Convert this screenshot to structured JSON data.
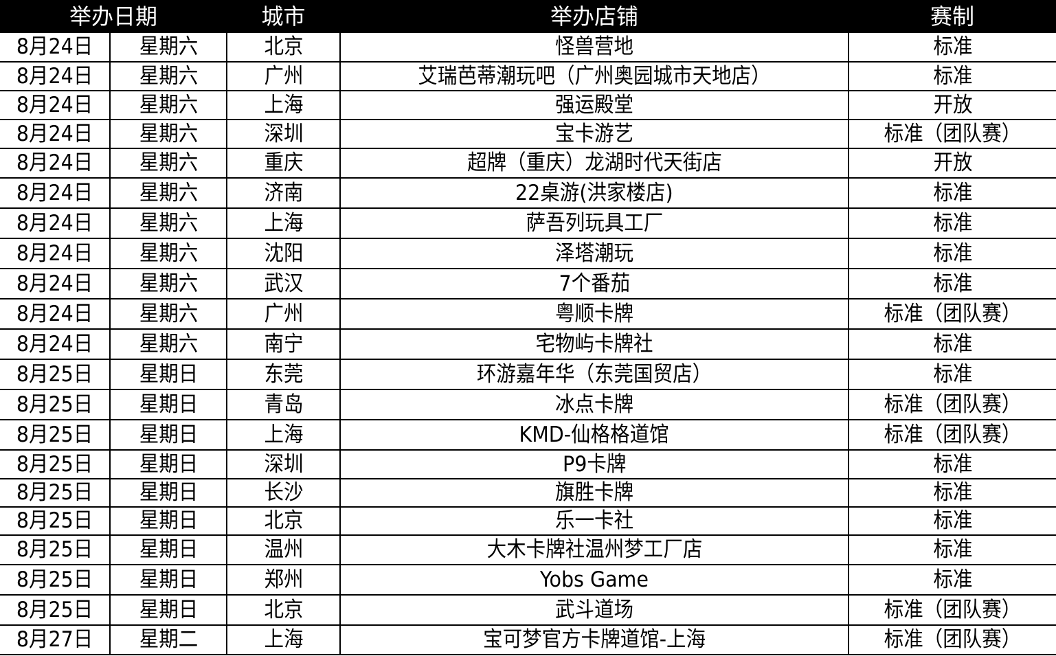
{
  "header": {
    "date": "举办日期",
    "city": "城市",
    "store": "举办店铺",
    "format": "赛制"
  },
  "rows": [
    [
      "8月24日",
      "星期六",
      "北京",
      "怪兽营地",
      "标准"
    ],
    [
      "8月24日",
      "星期六",
      "广州",
      "艾瑞芭蒂潮玩吧（广州奥园城市天地店）",
      "标准"
    ],
    [
      "8月24日",
      "星期六",
      "上海",
      "强运殿堂",
      "开放"
    ],
    [
      "8月24日",
      "星期六",
      "深圳",
      "宝卡游艺",
      "标准（团队赛）"
    ],
    [
      "8月24日",
      "星期六",
      "重庆",
      "超牌（重庆）龙湖时代天街店",
      "开放"
    ],
    [
      "8月24日",
      "星期六",
      "济南",
      "22桌游(洪家楼店)",
      "标准"
    ],
    [
      "8月24日",
      "星期六",
      "上海",
      "萨吾列玩具工厂",
      "标准"
    ],
    [
      "8月24日",
      "星期六",
      "沈阳",
      "泽塔潮玩",
      "标准"
    ],
    [
      "8月24日",
      "星期六",
      "武汉",
      "7个番茄",
      "标准"
    ],
    [
      "8月24日",
      "星期六",
      "广州",
      "粤顺卡牌",
      "标准（团队赛）"
    ],
    [
      "8月24日",
      "星期六",
      "南宁",
      "宅物屿卡牌社",
      "标准"
    ],
    [
      "8月25日",
      "星期日",
      "东莞",
      "环游嘉年华（东莞国贸店）",
      "标准"
    ],
    [
      "8月25日",
      "星期日",
      "青岛",
      "冰点卡牌",
      "标准（团队赛）"
    ],
    [
      "8月25日",
      "星期日",
      "上海",
      "KMD-仙格格道馆",
      "标准（团队赛）"
    ],
    [
      "8月25日",
      "星期日",
      "深圳",
      "P9卡牌",
      "标准"
    ],
    [
      "8月25日",
      "星期日",
      "长沙",
      "旗胜卡牌",
      "标准"
    ],
    [
      "8月25日",
      "星期日",
      "北京",
      "乐一卡社",
      "标准"
    ],
    [
      "8月25日",
      "星期日",
      "温州",
      "大木卡牌社温州梦工厂店",
      "标准"
    ],
    [
      "8月25日",
      "星期日",
      "郑州",
      "Yobs Game",
      "标准"
    ],
    [
      "8月25日",
      "星期日",
      "北京",
      "武斗道场",
      "标准（团队赛）"
    ],
    [
      "8月27日",
      "星期二",
      "上海",
      "宝可梦官方卡牌道馆-上海",
      "标准（团队赛）"
    ]
  ]
}
